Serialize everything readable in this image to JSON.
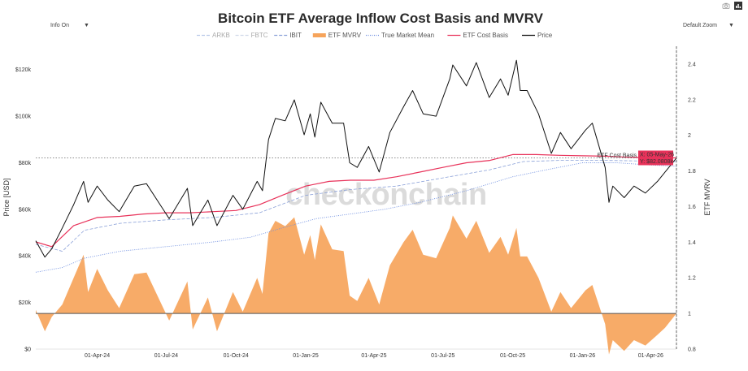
{
  "controls": {
    "info_label": "Info On",
    "zoom_label": "Default Zoom",
    "dropdown_glyph": "▼"
  },
  "icons": [
    "camera-icon",
    "bar-chart-icon"
  ],
  "colors": {
    "price": "#111111",
    "etf_cost_basis": "#e8325a",
    "true_market_mean": "#6f8fe0",
    "mvrv_fill": "#f6a45b",
    "arkb": "#b8c8e8",
    "fbtc": "#cfd8e8",
    "ibit": "#8aa0d8",
    "watermark": "#cfcfcf"
  },
  "watermark": "checkonchain",
  "chart_data": {
    "type": "line",
    "title": "Bitcoin ETF Average Inflow Cost Basis and MVRV",
    "ylabel": "Price [USD]",
    "y2label": "ETF MVRV",
    "ylim": [
      0,
      130000
    ],
    "y2lim": [
      0.8,
      2.5
    ],
    "yticks": [
      {
        "value": 0,
        "label": "$0"
      },
      {
        "value": 20000,
        "label": "$20k"
      },
      {
        "value": 40000,
        "label": "$40k"
      },
      {
        "value": 60000,
        "label": "$60k"
      },
      {
        "value": 80000,
        "label": "$80k"
      },
      {
        "value": 100000,
        "label": "$100k"
      },
      {
        "value": 120000,
        "label": "$120k"
      }
    ],
    "y2ticks": [
      {
        "value": 0.8,
        "label": "0.8"
      },
      {
        "value": 1.0,
        "label": "1"
      },
      {
        "value": 1.2,
        "label": "1.2"
      },
      {
        "value": 1.4,
        "label": "1.4"
      },
      {
        "value": 1.6,
        "label": "1.6"
      },
      {
        "value": 1.8,
        "label": "1.8"
      },
      {
        "value": 2.0,
        "label": "2"
      },
      {
        "value": 2.2,
        "label": "2.2"
      },
      {
        "value": 2.4,
        "label": "2.4"
      }
    ],
    "xrange": [
      "2024-01-11",
      "2026-05-05"
    ],
    "xticks": [
      {
        "date": "2024-04-01",
        "label": "01-Apr-24"
      },
      {
        "date": "2024-07-01",
        "label": "01-Jul-24"
      },
      {
        "date": "2024-10-01",
        "label": "01-Oct-24"
      },
      {
        "date": "2025-01-01",
        "label": "01-Jan-25"
      },
      {
        "date": "2025-04-01",
        "label": "01-Apr-25"
      },
      {
        "date": "2025-07-01",
        "label": "01-Jul-25"
      },
      {
        "date": "2025-10-01",
        "label": "01-Oct-25"
      },
      {
        "date": "2026-01-01",
        "label": "01-Jan-26"
      },
      {
        "date": "2026-04-01",
        "label": "01-Apr-26"
      }
    ],
    "legend": {
      "placement": "top-center",
      "entries": [
        {
          "name": "ARKB",
          "style": "dash",
          "color": "#b8c8e8",
          "dim": true
        },
        {
          "name": "FBTC",
          "style": "dash",
          "color": "#cfd8e8",
          "dim": true
        },
        {
          "name": "IBIT",
          "style": "dash",
          "color": "#8aa0d8",
          "dim": false
        },
        {
          "name": "ETF MVRV",
          "style": "bar",
          "color": "#f6a45b",
          "dim": false
        },
        {
          "name": "True Market Mean",
          "style": "dot",
          "color": "#6f8fe0",
          "dim": false
        },
        {
          "name": "ETF Cost Basis",
          "style": "line",
          "color": "#e8325a",
          "dim": false
        },
        {
          "name": "Price",
          "style": "line",
          "color": "#111111",
          "dim": false
        }
      ]
    },
    "reference_lines": [
      {
        "axis": "y2",
        "value": 1.0,
        "style": "solid",
        "color": "#555555"
      },
      {
        "axis": "y",
        "value": 82080,
        "style": "dotted",
        "color": "#666666"
      }
    ],
    "crosshair": {
      "date": "2026-05-05",
      "style": "dashed"
    },
    "hover_label": {
      "series": "ETF Cost Basis",
      "x_text": "X: 05-May-26",
      "y_text": "Y: $82.0808k",
      "color": "#e8325a"
    },
    "series": [
      {
        "name": "Price",
        "axis": "y",
        "points": [
          [
            "2024-01-11",
            46500
          ],
          [
            "2024-01-23",
            39500
          ],
          [
            "2024-02-01",
            43000
          ],
          [
            "2024-02-15",
            52000
          ],
          [
            "2024-03-01",
            62000
          ],
          [
            "2024-03-14",
            72000
          ],
          [
            "2024-03-20",
            63000
          ],
          [
            "2024-04-01",
            70000
          ],
          [
            "2024-04-15",
            64000
          ],
          [
            "2024-04-30",
            59000
          ],
          [
            "2024-05-20",
            70000
          ],
          [
            "2024-06-05",
            71000
          ],
          [
            "2024-06-25",
            61000
          ],
          [
            "2024-07-05",
            56000
          ],
          [
            "2024-07-29",
            69000
          ],
          [
            "2024-08-05",
            53000
          ],
          [
            "2024-08-25",
            64000
          ],
          [
            "2024-09-06",
            53000
          ],
          [
            "2024-09-27",
            66000
          ],
          [
            "2024-10-10",
            60000
          ],
          [
            "2024-10-29",
            72000
          ],
          [
            "2024-11-05",
            68000
          ],
          [
            "2024-11-13",
            90000
          ],
          [
            "2024-11-22",
            99000
          ],
          [
            "2024-12-05",
            98000
          ],
          [
            "2024-12-17",
            107000
          ],
          [
            "2024-12-30",
            92000
          ],
          [
            "2025-01-07",
            101000
          ],
          [
            "2025-01-13",
            91000
          ],
          [
            "2025-01-21",
            106000
          ],
          [
            "2025-02-05",
            97000
          ],
          [
            "2025-02-20",
            97000
          ],
          [
            "2025-02-28",
            80000
          ],
          [
            "2025-03-10",
            78000
          ],
          [
            "2025-03-25",
            87000
          ],
          [
            "2025-04-08",
            76000
          ],
          [
            "2025-04-22",
            93000
          ],
          [
            "2025-05-10",
            104000
          ],
          [
            "2025-05-22",
            111000
          ],
          [
            "2025-06-05",
            101000
          ],
          [
            "2025-06-22",
            100000
          ],
          [
            "2025-07-10",
            116000
          ],
          [
            "2025-07-14",
            122000
          ],
          [
            "2025-08-01",
            113000
          ],
          [
            "2025-08-14",
            123000
          ],
          [
            "2025-08-31",
            108000
          ],
          [
            "2025-09-15",
            116000
          ],
          [
            "2025-09-25",
            109000
          ],
          [
            "2025-10-06",
            124000
          ],
          [
            "2025-10-11",
            111000
          ],
          [
            "2025-10-20",
            111000
          ],
          [
            "2025-11-04",
            101000
          ],
          [
            "2025-11-21",
            84000
          ],
          [
            "2025-12-03",
            93000
          ],
          [
            "2025-12-17",
            86000
          ],
          [
            "2026-01-05",
            94000
          ],
          [
            "2026-01-14",
            97000
          ],
          [
            "2026-01-31",
            78000
          ],
          [
            "2026-02-05",
            63000
          ],
          [
            "2026-02-10",
            70000
          ],
          [
            "2026-02-25",
            65000
          ],
          [
            "2026-03-10",
            70000
          ],
          [
            "2026-03-25",
            67000
          ],
          [
            "2026-04-10",
            72000
          ],
          [
            "2026-04-20",
            76000
          ],
          [
            "2026-05-05",
            82000
          ]
        ]
      },
      {
        "name": "ETF Cost Basis",
        "axis": "y",
        "points": [
          [
            "2024-01-11",
            46000
          ],
          [
            "2024-02-01",
            44000
          ],
          [
            "2024-03-01",
            53000
          ],
          [
            "2024-04-01",
            56500
          ],
          [
            "2024-05-01",
            57000
          ],
          [
            "2024-06-01",
            58000
          ],
          [
            "2024-07-01",
            58500
          ],
          [
            "2024-08-01",
            58500
          ],
          [
            "2024-09-01",
            59000
          ],
          [
            "2024-10-01",
            59500
          ],
          [
            "2024-11-01",
            62000
          ],
          [
            "2024-12-01",
            66000
          ],
          [
            "2025-01-01",
            70000
          ],
          [
            "2025-02-01",
            72000
          ],
          [
            "2025-03-01",
            72500
          ],
          [
            "2025-04-01",
            72500
          ],
          [
            "2025-05-01",
            74000
          ],
          [
            "2025-06-01",
            76000
          ],
          [
            "2025-07-01",
            78000
          ],
          [
            "2025-08-01",
            80000
          ],
          [
            "2025-09-01",
            81000
          ],
          [
            "2025-10-01",
            83500
          ],
          [
            "2025-11-01",
            83500
          ],
          [
            "2025-12-01",
            83200
          ],
          [
            "2026-01-01",
            83000
          ],
          [
            "2026-02-01",
            82800
          ],
          [
            "2026-03-01",
            82400
          ],
          [
            "2026-04-01",
            82200
          ],
          [
            "2026-05-05",
            82080
          ]
        ]
      },
      {
        "name": "True Market Mean",
        "axis": "y",
        "points": [
          [
            "2024-01-11",
            33000
          ],
          [
            "2024-02-15",
            35000
          ],
          [
            "2024-03-15",
            39000
          ],
          [
            "2024-05-01",
            42000
          ],
          [
            "2024-07-01",
            44000
          ],
          [
            "2024-09-01",
            46000
          ],
          [
            "2024-10-20",
            48000
          ],
          [
            "2024-12-01",
            52000
          ],
          [
            "2025-01-15",
            56000
          ],
          [
            "2025-03-01",
            58000
          ],
          [
            "2025-04-15",
            60000
          ],
          [
            "2025-06-01",
            63000
          ],
          [
            "2025-08-01",
            68000
          ],
          [
            "2025-10-01",
            74000
          ],
          [
            "2025-11-15",
            77000
          ],
          [
            "2026-01-01",
            80000
          ],
          [
            "2026-02-15",
            80000
          ],
          [
            "2026-04-01",
            79000
          ],
          [
            "2026-05-05",
            78500
          ]
        ]
      },
      {
        "name": "IBIT",
        "axis": "y",
        "points": [
          [
            "2024-01-11",
            45000
          ],
          [
            "2024-02-15",
            42000
          ],
          [
            "2024-03-15",
            51000
          ],
          [
            "2024-05-01",
            54000
          ],
          [
            "2024-07-01",
            55500
          ],
          [
            "2024-09-01",
            56500
          ],
          [
            "2024-11-01",
            58500
          ],
          [
            "2025-01-01",
            66000
          ],
          [
            "2025-03-01",
            68500
          ],
          [
            "2025-05-01",
            70000
          ],
          [
            "2025-07-01",
            73500
          ],
          [
            "2025-09-01",
            77000
          ],
          [
            "2025-10-15",
            80500
          ],
          [
            "2025-12-01",
            81000
          ],
          [
            "2026-02-01",
            81000
          ],
          [
            "2026-05-05",
            80500
          ]
        ]
      },
      {
        "name": "ETF MVRV",
        "axis": "y2",
        "points": [
          [
            "2024-01-11",
            1.02
          ],
          [
            "2024-01-23",
            0.9
          ],
          [
            "2024-02-01",
            0.98
          ],
          [
            "2024-02-15",
            1.05
          ],
          [
            "2024-03-01",
            1.2
          ],
          [
            "2024-03-14",
            1.33
          ],
          [
            "2024-03-20",
            1.12
          ],
          [
            "2024-04-01",
            1.25
          ],
          [
            "2024-04-15",
            1.13
          ],
          [
            "2024-04-30",
            1.03
          ],
          [
            "2024-05-20",
            1.22
          ],
          [
            "2024-06-05",
            1.23
          ],
          [
            "2024-06-25",
            1.05
          ],
          [
            "2024-07-05",
            0.96
          ],
          [
            "2024-07-29",
            1.18
          ],
          [
            "2024-08-05",
            0.91
          ],
          [
            "2024-08-25",
            1.09
          ],
          [
            "2024-09-06",
            0.9
          ],
          [
            "2024-09-27",
            1.12
          ],
          [
            "2024-10-10",
            1.01
          ],
          [
            "2024-10-29",
            1.2
          ],
          [
            "2024-11-05",
            1.11
          ],
          [
            "2024-11-13",
            1.45
          ],
          [
            "2024-11-22",
            1.52
          ],
          [
            "2024-12-05",
            1.49
          ],
          [
            "2024-12-17",
            1.54
          ],
          [
            "2024-12-30",
            1.33
          ],
          [
            "2025-01-07",
            1.44
          ],
          [
            "2025-01-13",
            1.3
          ],
          [
            "2025-01-21",
            1.5
          ],
          [
            "2025-02-05",
            1.36
          ],
          [
            "2025-02-20",
            1.35
          ],
          [
            "2025-02-28",
            1.1
          ],
          [
            "2025-03-10",
            1.07
          ],
          [
            "2025-03-25",
            1.2
          ],
          [
            "2025-04-08",
            1.05
          ],
          [
            "2025-04-22",
            1.27
          ],
          [
            "2025-05-10",
            1.4
          ],
          [
            "2025-05-22",
            1.47
          ],
          [
            "2025-06-05",
            1.33
          ],
          [
            "2025-06-22",
            1.31
          ],
          [
            "2025-07-10",
            1.48
          ],
          [
            "2025-07-14",
            1.55
          ],
          [
            "2025-08-01",
            1.42
          ],
          [
            "2025-08-14",
            1.52
          ],
          [
            "2025-08-31",
            1.34
          ],
          [
            "2025-09-15",
            1.43
          ],
          [
            "2025-09-25",
            1.33
          ],
          [
            "2025-10-06",
            1.48
          ],
          [
            "2025-10-11",
            1.32
          ],
          [
            "2025-10-20",
            1.32
          ],
          [
            "2025-11-04",
            1.2
          ],
          [
            "2025-11-21",
            1.01
          ],
          [
            "2025-12-03",
            1.12
          ],
          [
            "2025-12-17",
            1.03
          ],
          [
            "2026-01-05",
            1.13
          ],
          [
            "2026-01-14",
            1.16
          ],
          [
            "2026-01-31",
            0.94
          ],
          [
            "2026-02-05",
            0.77
          ],
          [
            "2026-02-10",
            0.85
          ],
          [
            "2026-02-25",
            0.79
          ],
          [
            "2026-03-10",
            0.85
          ],
          [
            "2026-03-25",
            0.82
          ],
          [
            "2026-04-10",
            0.88
          ],
          [
            "2026-04-20",
            0.92
          ],
          [
            "2026-05-05",
            1.0
          ]
        ]
      }
    ]
  }
}
